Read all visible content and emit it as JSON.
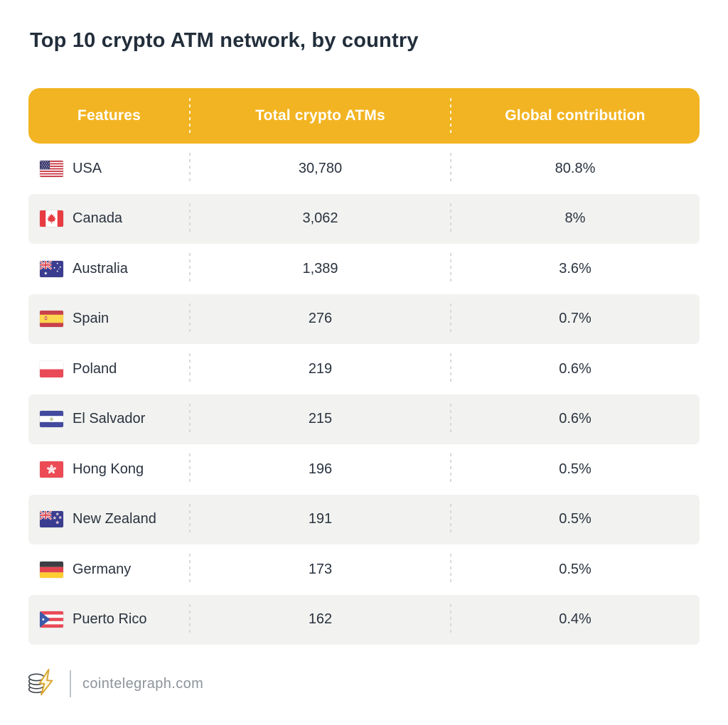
{
  "title": "Top 10 crypto ATM network, by country",
  "colors": {
    "header_bg": "#F2B422",
    "header_text": "#FFFFFF",
    "row_alt_bg": "#F2F2F0",
    "text_dark": "#2A333F",
    "separator_row": "#D8D8D4",
    "footer_text": "#8D939B"
  },
  "table": {
    "columns": [
      "Features",
      "Total crypto ATMs",
      "Global contribution"
    ],
    "rows": [
      {
        "country": "USA",
        "flag": "usa",
        "total_atms": "30,780",
        "global_contribution": "80.8%"
      },
      {
        "country": "Canada",
        "flag": "canada",
        "total_atms": "3,062",
        "global_contribution": "8%"
      },
      {
        "country": "Australia",
        "flag": "australia",
        "total_atms": "1,389",
        "global_contribution": "3.6%"
      },
      {
        "country": "Spain",
        "flag": "spain",
        "total_atms": "276",
        "global_contribution": "0.7%"
      },
      {
        "country": "Poland",
        "flag": "poland",
        "total_atms": "219",
        "global_contribution": "0.6%"
      },
      {
        "country": "El Salvador",
        "flag": "el-salvador",
        "total_atms": "215",
        "global_contribution": "0.6%"
      },
      {
        "country": "Hong Kong",
        "flag": "hong-kong",
        "total_atms": "196",
        "global_contribution": "0.5%"
      },
      {
        "country": "New Zealand",
        "flag": "new-zealand",
        "total_atms": "191",
        "global_contribution": "0.5%"
      },
      {
        "country": "Germany",
        "flag": "germany",
        "total_atms": "173",
        "global_contribution": "0.5%"
      },
      {
        "country": "Puerto Rico",
        "flag": "puerto-rico",
        "total_atms": "162",
        "global_contribution": "0.4%"
      }
    ]
  },
  "footer": {
    "site": "cointelegraph.com",
    "logo": "cointelegraph-coins-lightning"
  },
  "chart_data": {
    "type": "table",
    "title": "Top 10 crypto ATM network, by country",
    "columns": [
      "Features",
      "Total crypto ATMs",
      "Global contribution"
    ],
    "rows": [
      [
        "USA",
        30780,
        80.8
      ],
      [
        "Canada",
        3062,
        8
      ],
      [
        "Australia",
        1389,
        3.6
      ],
      [
        "Spain",
        276,
        0.7
      ],
      [
        "Poland",
        219,
        0.6
      ],
      [
        "El Salvador",
        215,
        0.6
      ],
      [
        "Hong Kong",
        196,
        0.5
      ],
      [
        "New Zealand",
        191,
        0.5
      ],
      [
        "Germany",
        173,
        0.5
      ],
      [
        "Puerto Rico",
        162,
        0.4
      ]
    ],
    "units": {
      "total_atms": "count",
      "global_contribution": "percent"
    }
  }
}
